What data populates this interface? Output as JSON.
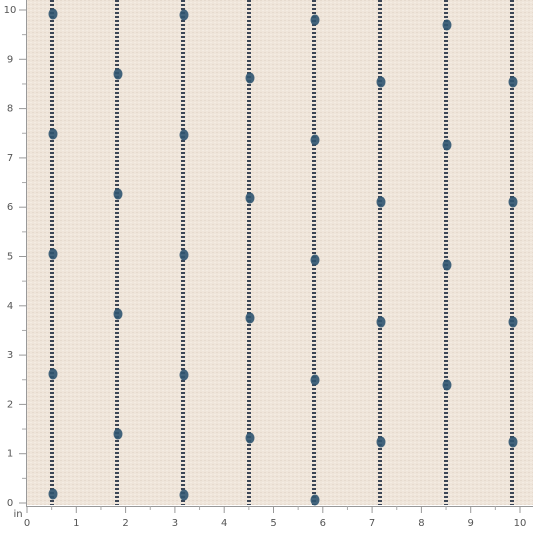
{
  "ruler": {
    "unit": "in",
    "x_labels": [
      0,
      1,
      2,
      3,
      4,
      5,
      6,
      7,
      8,
      9,
      10
    ],
    "y_labels": [
      0,
      1,
      2,
      3,
      4,
      5,
      6,
      7,
      8,
      9,
      10
    ]
  }
}
